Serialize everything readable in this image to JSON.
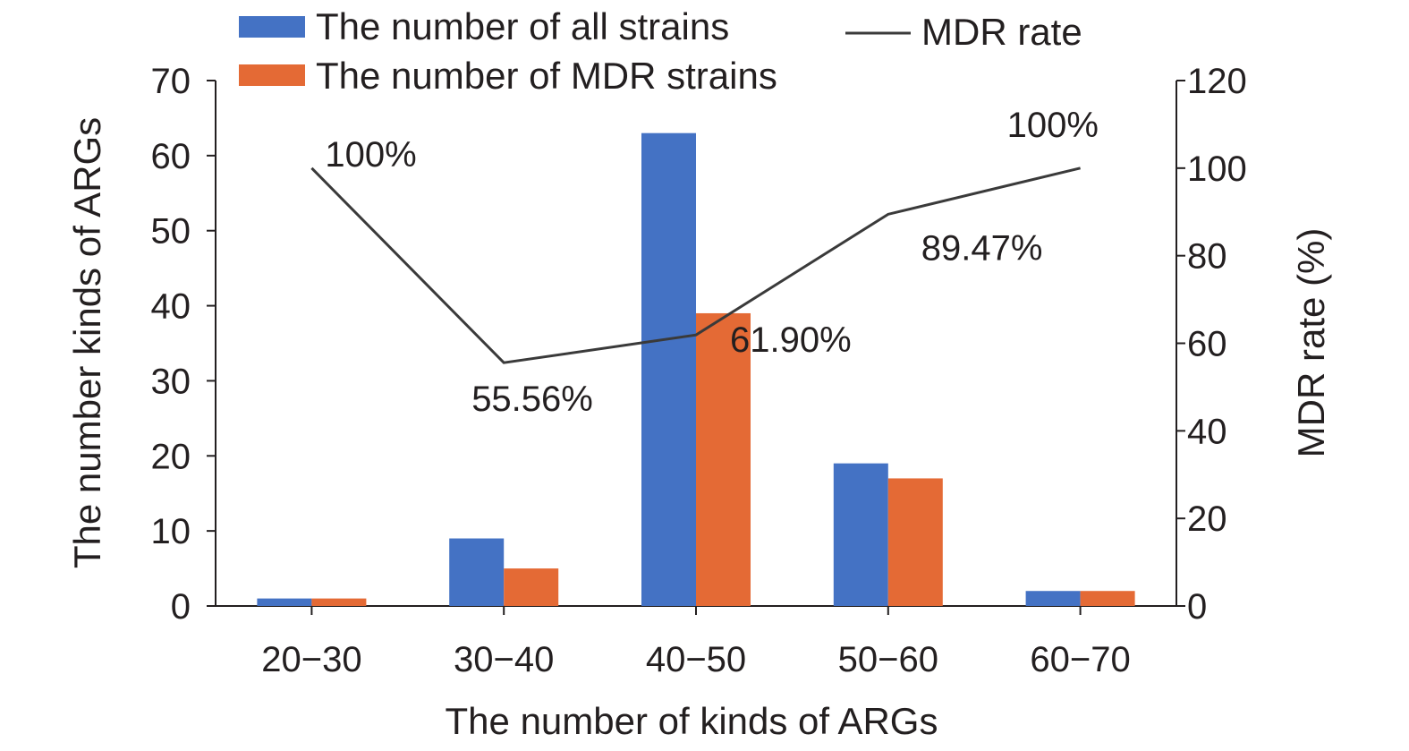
{
  "chart_data": {
    "type": "bar",
    "categories": [
      "20−30",
      "30−40",
      "40−50",
      "50−60",
      "60−70"
    ],
    "series": [
      {
        "name": "The number of all strains",
        "type": "bar",
        "axis": "left",
        "values": [
          1,
          9,
          63,
          19,
          2
        ]
      },
      {
        "name": "The number of MDR strains",
        "type": "bar",
        "axis": "left",
        "values": [
          1,
          5,
          39,
          17,
          2
        ]
      },
      {
        "name": "MDR rate",
        "type": "line",
        "axis": "right",
        "values": [
          100,
          55.56,
          61.9,
          89.47,
          100
        ]
      }
    ],
    "line_labels": [
      "100%",
      "55.56%",
      "61.90%",
      "89.47%",
      "100%"
    ],
    "xlabel": "The number of kinds of ARGs",
    "ylabel": "The number kinds of ARGs",
    "y2label": "MDR rate (%)",
    "ylim": [
      0,
      70
    ],
    "y2lim": [
      0,
      120
    ],
    "yticks": [
      "0",
      "10",
      "20",
      "30",
      "40",
      "50",
      "60",
      "70"
    ],
    "y2ticks": [
      "0",
      "20",
      "40",
      "60",
      "80",
      "100",
      "120"
    ],
    "grid": false,
    "legend_position": "top",
    "colors": {
      "all": "#4472c4",
      "mdr": "#e46a35",
      "line": "#3a3a3a",
      "axis": "#231f20"
    }
  }
}
